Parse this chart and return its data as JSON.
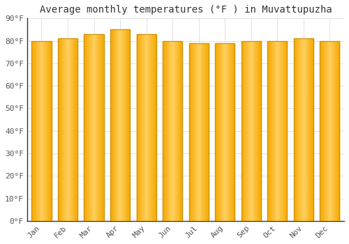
{
  "title": "Average monthly temperatures (°F ) in Muvattupuzha",
  "months": [
    "Jan",
    "Feb",
    "Mar",
    "Apr",
    "May",
    "Jun",
    "Jul",
    "Aug",
    "Sep",
    "Oct",
    "Nov",
    "Dec"
  ],
  "values": [
    80,
    81,
    83,
    85,
    83,
    80,
    79,
    79,
    80,
    80,
    81,
    80
  ],
  "ylim": [
    0,
    90
  ],
  "yticks": [
    0,
    10,
    20,
    30,
    40,
    50,
    60,
    70,
    80,
    90
  ],
  "ytick_labels": [
    "0°F",
    "10°F",
    "20°F",
    "30°F",
    "40°F",
    "50°F",
    "60°F",
    "70°F",
    "80°F",
    "90°F"
  ],
  "bar_color_center": "#FFD060",
  "bar_color_edge": "#F5A800",
  "bar_edge_color": "#C8900A",
  "background_color": "#FFFFFF",
  "grid_color": "#DDDDDD",
  "title_fontsize": 10,
  "tick_fontsize": 8,
  "font_family": "monospace",
  "bar_width": 0.75
}
